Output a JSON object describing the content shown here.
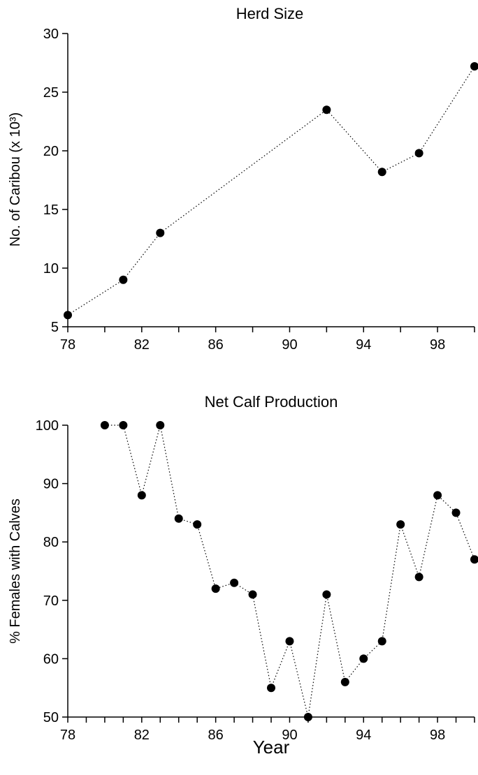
{
  "figure": {
    "shared_xlabel": "Year"
  },
  "chart_data": [
    {
      "type": "scatter",
      "title": "Herd Size",
      "xlabel": "",
      "ylabel": "No. of Caribou (x 10³)",
      "xlim": [
        78,
        100
      ],
      "ylim": [
        5,
        30
      ],
      "x_ticks": [
        78,
        80,
        82,
        84,
        86,
        88,
        90,
        92,
        94,
        96,
        98,
        100
      ],
      "x_tick_labels": [
        "78",
        "",
        "82",
        "",
        "86",
        "",
        "90",
        "",
        "94",
        "",
        "98",
        ""
      ],
      "y_ticks": [
        5,
        10,
        15,
        20,
        25,
        30
      ],
      "y_tick_labels": [
        "5",
        "10",
        "15",
        "20",
        "25",
        "30"
      ],
      "grid": false,
      "x": [
        78,
        81,
        83,
        92,
        95,
        97,
        100
      ],
      "y": [
        6,
        9,
        13,
        23.5,
        18.2,
        19.8,
        27.2
      ],
      "marker_color": "#000000"
    },
    {
      "type": "scatter",
      "title": "Net Calf Production",
      "xlabel": "Year",
      "ylabel": "% Females with Calves",
      "xlim": [
        78,
        100
      ],
      "ylim": [
        50,
        100
      ],
      "x_ticks": [
        78,
        79,
        80,
        81,
        82,
        83,
        84,
        85,
        86,
        87,
        88,
        89,
        90,
        91,
        92,
        93,
        94,
        95,
        96,
        97,
        98,
        99,
        100
      ],
      "x_tick_labels": [
        "78",
        "",
        "",
        "",
        "82",
        "",
        "",
        "",
        "86",
        "",
        "",
        "",
        "90",
        "",
        "",
        "",
        "94",
        "",
        "",
        "",
        "98",
        "",
        ""
      ],
      "y_ticks": [
        50,
        60,
        70,
        80,
        90,
        100
      ],
      "y_tick_labels": [
        "50",
        "60",
        "70",
        "80",
        "90",
        "100"
      ],
      "grid": false,
      "x": [
        80,
        81,
        82,
        83,
        84,
        85,
        86,
        87,
        88,
        89,
        90,
        91,
        92,
        93,
        94,
        95,
        96,
        97,
        98,
        99,
        100
      ],
      "y": [
        100,
        100,
        88,
        100,
        84,
        83,
        72,
        73,
        71,
        55,
        63,
        50,
        71,
        56,
        60,
        63,
        83,
        74,
        88,
        85,
        77
      ],
      "marker_color": "#000000"
    }
  ]
}
